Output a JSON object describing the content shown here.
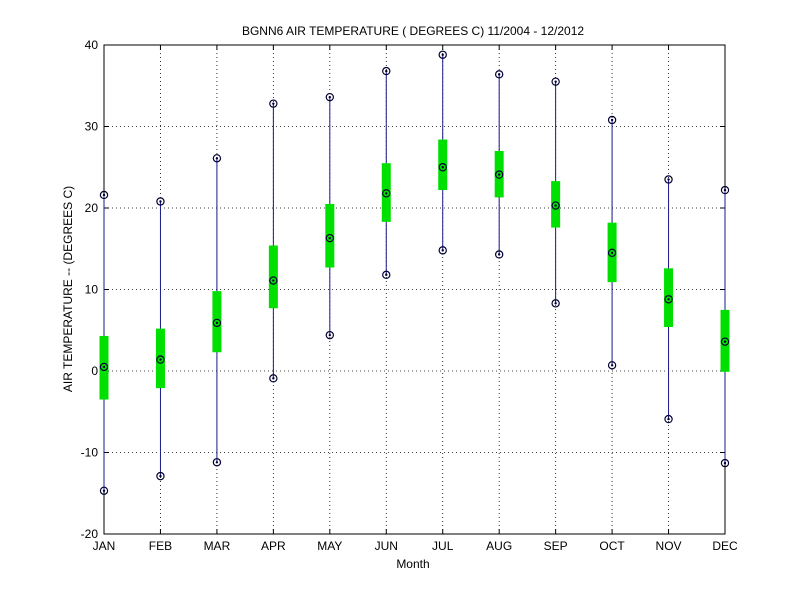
{
  "chart_data": {
    "type": "box-range",
    "title": "BGNN6  AIR TEMPERATURE ( DEGREES C) 11/2004 - 12/2012",
    "xlabel": "Month",
    "ylabel": "AIR TEMPERATURE -- (DEGREES C)",
    "categories": [
      "JAN",
      "FEB",
      "MAR",
      "APR",
      "MAY",
      "JUN",
      "JUL",
      "AUG",
      "SEP",
      "OCT",
      "NOV",
      "DEC"
    ],
    "ylim": [
      -20,
      40
    ],
    "yticks": [
      -20,
      -10,
      0,
      10,
      20,
      30,
      40
    ],
    "ytick_labels": [
      "-20",
      "-10",
      "0",
      "10",
      "20",
      "30",
      "40"
    ],
    "grid": true,
    "colors": {
      "range_line": "#1a1a8c",
      "box_fill": "#00e000",
      "grid": "#000000",
      "axis": "#000000"
    },
    "series": [
      {
        "min": -14.7,
        "q1": -3.5,
        "median": 0.5,
        "q3": 4.3,
        "max": 21.6
      },
      {
        "min": -12.9,
        "q1": -2.1,
        "median": 1.4,
        "q3": 5.2,
        "max": 20.8
      },
      {
        "min": -11.2,
        "q1": 2.3,
        "median": 5.9,
        "q3": 9.8,
        "max": 26.1
      },
      {
        "min": -0.9,
        "q1": 7.7,
        "median": 11.1,
        "q3": 15.4,
        "max": 32.8
      },
      {
        "min": 4.4,
        "q1": 12.7,
        "median": 16.3,
        "q3": 20.5,
        "max": 33.6
      },
      {
        "min": 11.8,
        "q1": 18.3,
        "median": 21.8,
        "q3": 25.5,
        "max": 36.8
      },
      {
        "min": 14.8,
        "q1": 22.2,
        "median": 25.0,
        "q3": 28.4,
        "max": 38.8
      },
      {
        "min": 14.3,
        "q1": 21.3,
        "median": 24.1,
        "q3": 27.0,
        "max": 36.4
      },
      {
        "min": 8.3,
        "q1": 17.6,
        "median": 20.3,
        "q3": 23.3,
        "max": 35.5
      },
      {
        "min": 0.7,
        "q1": 10.9,
        "median": 14.5,
        "q3": 18.2,
        "max": 30.8
      },
      {
        "min": -5.9,
        "q1": 5.4,
        "median": 8.8,
        "q3": 12.6,
        "max": 23.5
      },
      {
        "min": -11.3,
        "q1": -0.1,
        "median": 3.6,
        "q3": 7.5,
        "max": 22.2
      }
    ]
  }
}
